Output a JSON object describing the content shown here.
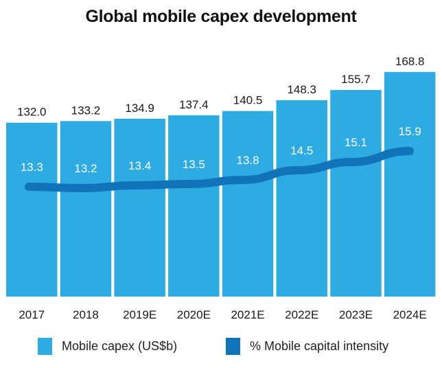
{
  "chart_data": {
    "type": "bar",
    "title": "Global mobile capex development",
    "xlabel": "",
    "ylabel": "",
    "categories": [
      "2017",
      "2018",
      "2019E",
      "2020E",
      "2021E",
      "2022E",
      "2023E",
      "2024E"
    ],
    "series": [
      {
        "name": "Mobile capex (US$b)",
        "type": "bar",
        "color": "#2eabe2",
        "values": [
          132.0,
          133.2,
          134.9,
          137.4,
          140.5,
          148.3,
          155.7,
          168.8
        ],
        "labels": [
          "132.0",
          "133.2",
          "134.9",
          "137.4",
          "140.5",
          "148.3",
          "155.7",
          "168.8"
        ]
      },
      {
        "name": "% Mobile capital intensity",
        "type": "line",
        "color": "#1174bb",
        "values": [
          13.3,
          13.2,
          13.4,
          13.5,
          13.8,
          14.5,
          15.1,
          15.9
        ],
        "labels": [
          "13.3",
          "13.2",
          "13.4",
          "13.5",
          "13.8",
          "14.5",
          "15.1",
          "15.9"
        ]
      }
    ],
    "bar_axis_range": [
      6,
      168.8
    ],
    "grid": false,
    "legend_position": "bottom"
  }
}
